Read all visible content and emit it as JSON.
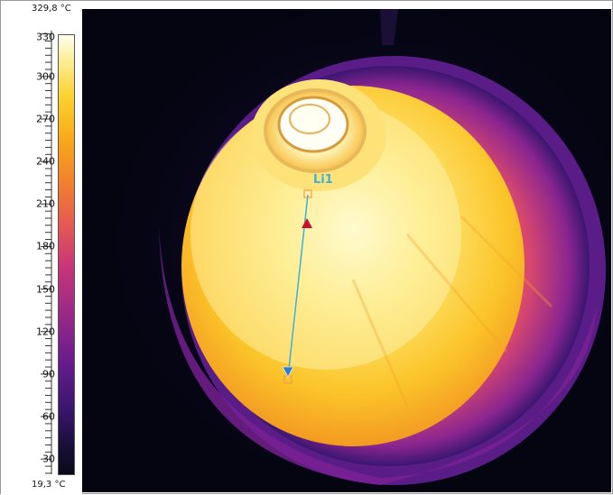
{
  "scale": {
    "max_label": "329,8 °C",
    "min_label": "19,3 °C",
    "ticks": [
      "330",
      "300",
      "270",
      "240",
      "210",
      "180",
      "150",
      "120",
      "90",
      "60",
      "30"
    ]
  },
  "measurement": {
    "line_label": "Li1",
    "line_color": "#3fb0d8",
    "hot_marker_color": "#c8102e",
    "cold_marker_color": "#2b7bd0"
  },
  "colors": {
    "background": "#050512",
    "hot": "#fffde0",
    "warm": "#fcd22e",
    "mid": "#f3822c",
    "cool": "#9c2a86"
  }
}
